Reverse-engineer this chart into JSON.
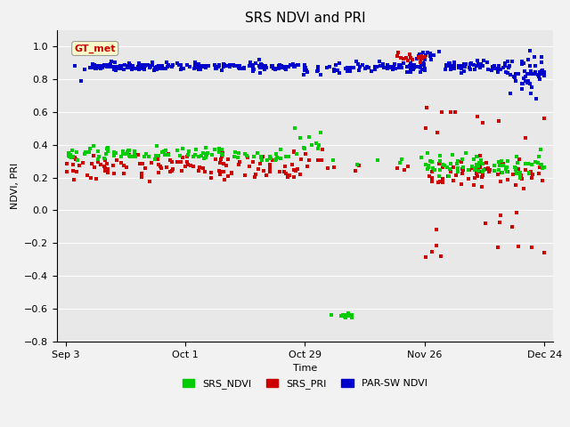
{
  "title": "SRS NDVI and PRI",
  "xlabel": "Time",
  "ylabel": "NDVI, PRI",
  "ylim": [
    -0.8,
    1.1
  ],
  "xtick_positions": [
    0,
    28,
    56,
    84,
    112
  ],
  "xtick_labels": [
    "Sep 3",
    "Oct 1",
    "Oct 29",
    "Nov 26",
    "Dec 24"
  ],
  "annotation_text": "GT_met",
  "fig_bg_color": "#f2f2f2",
  "plot_bg_color": "#e8e8e8",
  "legend_labels": [
    "SRS_NDVI",
    "SRS_PRI",
    "PAR-SW NDVI"
  ],
  "green_color": "#00cc00",
  "red_color": "#cc0000",
  "blue_color": "#0000cc",
  "marker_size": 9,
  "title_fontsize": 11,
  "axis_fontsize": 8,
  "tick_fontsize": 8,
  "legend_fontsize": 8
}
